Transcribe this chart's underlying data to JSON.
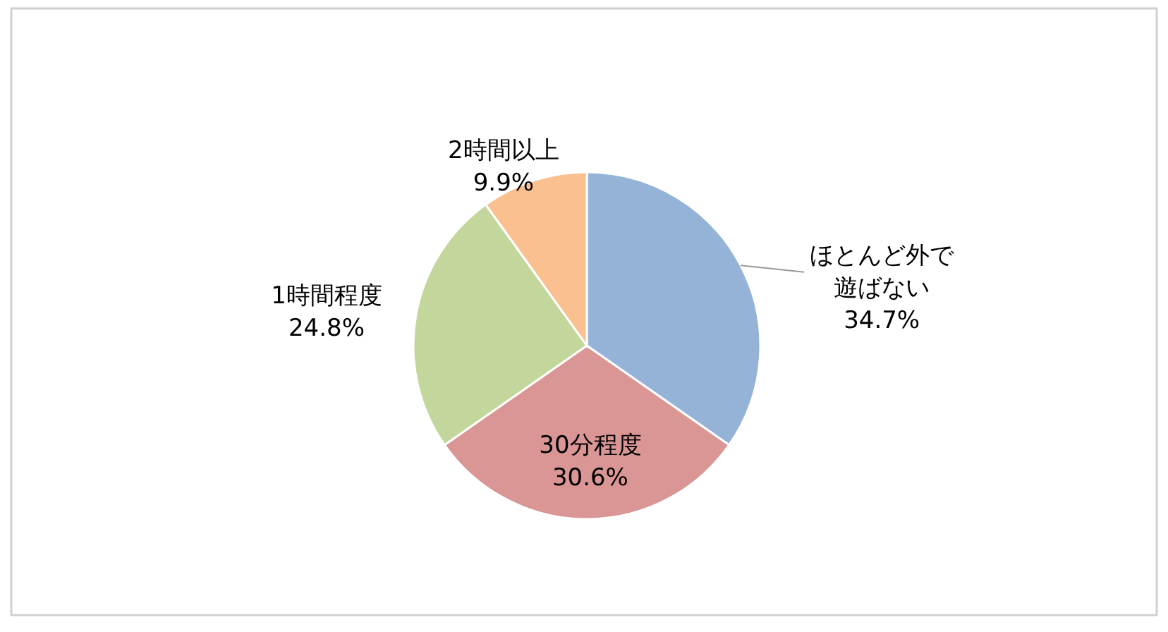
{
  "chart_data": {
    "type": "pie",
    "categories": [
      "ほとんど外で遊ばない",
      "30分程度",
      "1時間程度",
      "2時間以上"
    ],
    "values": [
      34.7,
      30.6,
      24.8,
      9.9
    ],
    "colors": [
      "#95b3d7",
      "#d99694",
      "#c3d69b",
      "#fac090"
    ],
    "value_labels": [
      "34.7%",
      "30.6%",
      "24.8%",
      "9.9%"
    ]
  }
}
